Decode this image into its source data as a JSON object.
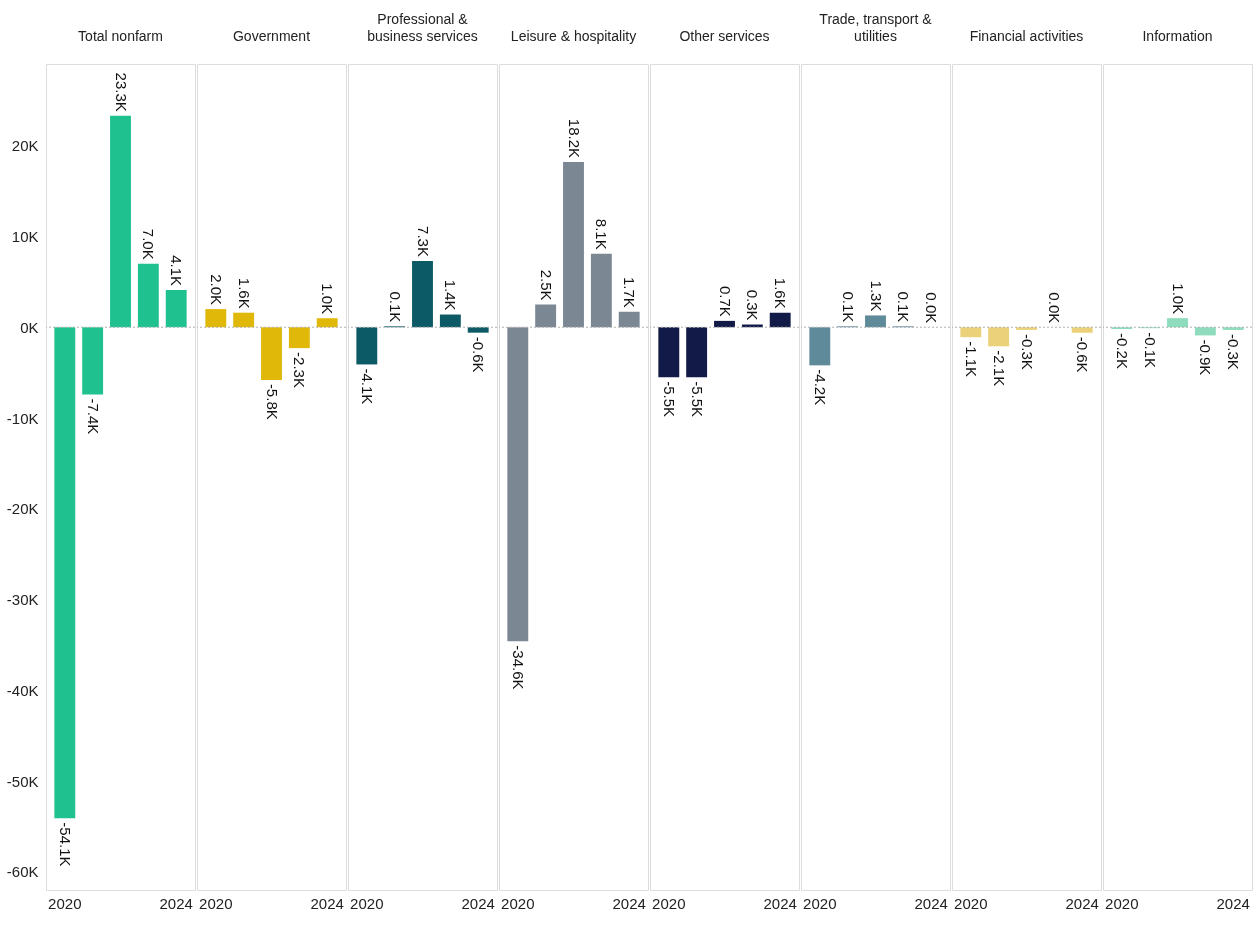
{
  "chart_data": [
    {
      "type": "bar",
      "title": "Total nonfarm",
      "categories": [
        "2020",
        null,
        null,
        null,
        "2024"
      ],
      "values": [
        -54100,
        -7400,
        23300,
        7000,
        4100
      ],
      "value_labels": [
        "-54.1K",
        "-7.4K",
        "23.3K",
        "7.0K",
        "4.1K"
      ],
      "color": "#1fc28f",
      "ylim": [
        -62000,
        29000
      ],
      "yticks": [
        {
          "value": -60000,
          "label": "-60K"
        },
        {
          "value": -50000,
          "label": "-50K"
        },
        {
          "value": -40000,
          "label": "-40K"
        },
        {
          "value": -30000,
          "label": "-30K"
        },
        {
          "value": -20000,
          "label": "-20K"
        },
        {
          "value": -10000,
          "label": "-10K"
        },
        {
          "value": 0,
          "label": "0K"
        },
        {
          "value": 10000,
          "label": "10K"
        },
        {
          "value": 20000,
          "label": "20K"
        }
      ],
      "grid": false,
      "ref_lines": [
        {
          "axis": "y",
          "value": 0,
          "label": null,
          "color": "#b0b0b0",
          "line_style": "dotted"
        }
      ]
    },
    {
      "type": "bar",
      "title": "Government",
      "categories": [
        "2020",
        null,
        null,
        null,
        "2024"
      ],
      "values": [
        2000,
        1600,
        -5800,
        -2300,
        1000
      ],
      "value_labels": [
        "2.0K",
        "1.6K",
        "-5.8K",
        "-2.3K",
        "1.0K"
      ],
      "color": "#e0b80a",
      "ylim": [
        -62000,
        29000
      ],
      "tick_labels": "x",
      "grid": false,
      "ref_lines": [
        {
          "axis": "y",
          "value": 0,
          "label": null,
          "color": "#b0b0b0",
          "line_style": "dotted"
        }
      ]
    },
    {
      "type": "bar",
      "title": "Professional & business services",
      "categories": [
        "2020",
        null,
        null,
        null,
        "2024"
      ],
      "values": [
        -4100,
        100,
        7300,
        1400,
        -600
      ],
      "value_labels": [
        "-4.1K",
        "0.1K",
        "7.3K",
        "1.4K",
        "-0.6K"
      ],
      "color": "#0b5a66",
      "ylim": [
        -62000,
        29000
      ],
      "tick_labels": "x",
      "grid": false,
      "ref_lines": [
        {
          "axis": "y",
          "value": 0,
          "label": null,
          "color": "#b0b0b0",
          "line_style": "dotted"
        }
      ]
    },
    {
      "type": "bar",
      "title": "Leisure & hospitality",
      "categories": [
        "2020",
        null,
        null,
        null,
        "2024"
      ],
      "values": [
        -34600,
        2500,
        18200,
        8100,
        1700
      ],
      "value_labels": [
        "-34.6K",
        "2.5K",
        "18.2K",
        "8.1K",
        "1.7K"
      ],
      "color": "#7c8794",
      "ylim": [
        -62000,
        29000
      ],
      "tick_labels": "x",
      "grid": false,
      "ref_lines": [
        {
          "axis": "y",
          "value": 0,
          "label": null,
          "color": "#b0b0b0",
          "line_style": "dotted"
        }
      ]
    },
    {
      "type": "bar",
      "title": "Other services",
      "categories": [
        "2020",
        null,
        null,
        null,
        "2024"
      ],
      "values": [
        -5500,
        -5500,
        700,
        300,
        1600
      ],
      "value_labels": [
        "-5.5K",
        "-5.5K",
        "0.7K",
        "0.3K",
        "1.6K"
      ],
      "color": "#121a47",
      "ylim": [
        -62000,
        29000
      ],
      "tick_labels": "x",
      "grid": false,
      "ref_lines": [
        {
          "axis": "y",
          "value": 0,
          "label": null,
          "color": "#b0b0b0",
          "line_style": "dotted"
        }
      ]
    },
    {
      "type": "bar",
      "title": "Trade, transport & utilities",
      "categories": [
        "2020",
        null,
        null,
        null,
        "2024"
      ],
      "values": [
        -4200,
        100,
        1300,
        100,
        0
      ],
      "value_labels": [
        "-4.2K",
        "0.1K",
        "1.3K",
        "0.1K",
        "0.0K"
      ],
      "color": "#5e8a99",
      "ylim": [
        -62000,
        29000
      ],
      "tick_labels": "x",
      "grid": false,
      "ref_lines": [
        {
          "axis": "y",
          "value": 0,
          "label": null,
          "color": "#b0b0b0",
          "line_style": "dotted"
        }
      ]
    },
    {
      "type": "bar",
      "title": "Financial activities",
      "categories": [
        "2020",
        null,
        null,
        null,
        "2024"
      ],
      "values": [
        -1100,
        -2100,
        -300,
        0,
        -600
      ],
      "value_labels": [
        "-1.1K",
        "-2.1K",
        "-0.3K",
        "0.0K",
        "-0.6K"
      ],
      "color": "#ebd27a",
      "ylim": [
        -62000,
        29000
      ],
      "tick_labels": "x",
      "grid": false,
      "ref_lines": [
        {
          "axis": "y",
          "value": 0,
          "label": null,
          "color": "#b0b0b0",
          "line_style": "dotted"
        }
      ]
    },
    {
      "type": "bar",
      "title": "Information",
      "categories": [
        "2020",
        null,
        null,
        null,
        "2024"
      ],
      "values": [
        -200,
        -100,
        1000,
        -900,
        -300
      ],
      "value_labels": [
        "-0.2K",
        "-0.1K",
        "1.0K",
        "-0.9K",
        "-0.3K"
      ],
      "color": "#8edcbd",
      "ylim": [
        -62000,
        29000
      ],
      "tick_labels": "x",
      "grid": false,
      "ref_lines": [
        {
          "axis": "y",
          "value": 0,
          "label": null,
          "color": "#b0b0b0",
          "line_style": "dotted"
        }
      ]
    }
  ]
}
